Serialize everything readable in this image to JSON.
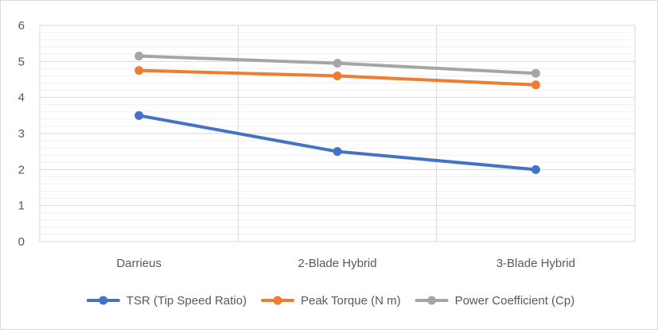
{
  "chart_data": {
    "type": "line",
    "title": "",
    "xlabel": "",
    "ylabel": "",
    "categories": [
      "Darrieus",
      "2-Blade Hybrid",
      "3-Blade Hybrid"
    ],
    "ylim": [
      0,
      6
    ],
    "yticks": [
      0,
      1,
      2,
      3,
      4,
      5,
      6
    ],
    "grid": true,
    "legend": "bottom",
    "series": [
      {
        "name": "TSR (Tip Speed Ratio)",
        "color": "#4472C4",
        "values": [
          3.5,
          2.5,
          2.0
        ]
      },
      {
        "name": "Peak Torque  (N m)",
        "color": "#ED7D31",
        "values": [
          4.75,
          4.6,
          4.35
        ]
      },
      {
        "name": "Power Coefficient (Cp)",
        "color": "#A5A5A5",
        "values": [
          5.15,
          4.95,
          4.67
        ]
      }
    ]
  }
}
